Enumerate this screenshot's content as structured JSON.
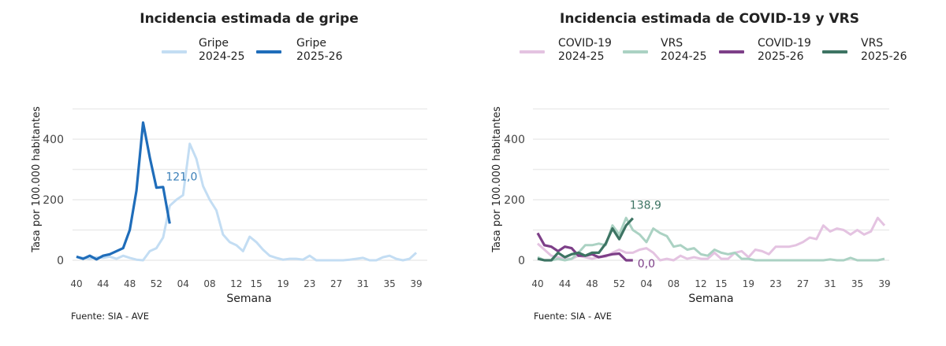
{
  "chart_data": [
    {
      "type": "line",
      "title": "Incidencia estimada de gripe",
      "xlabel": "Semana",
      "ylabel": "Tasa por 100.000 habitantes",
      "source": "Fuente: SIA - AVE",
      "ylim": [
        0,
        500
      ],
      "ytick_labels": [
        "0",
        "200",
        "400"
      ],
      "gridlines": [
        0,
        100,
        200,
        300,
        400,
        500
      ],
      "grid": true,
      "legend_position": "top",
      "weeks": [
        "40",
        "41",
        "42",
        "43",
        "44",
        "45",
        "46",
        "47",
        "48",
        "49",
        "50",
        "51",
        "52",
        "01",
        "02",
        "03",
        "04",
        "05",
        "06",
        "07",
        "08",
        "09",
        "10",
        "11",
        "12",
        "13",
        "14",
        "15",
        "16",
        "17",
        "18",
        "19",
        "20",
        "21",
        "22",
        "23",
        "24",
        "25",
        "26",
        "27",
        "28",
        "29",
        "30",
        "31",
        "32",
        "33",
        "34",
        "35",
        "36",
        "37",
        "38",
        "39"
      ],
      "xtick_labels": [
        "40",
        "44",
        "48",
        "52",
        "04",
        "08",
        "12",
        "15",
        "19",
        "23",
        "27",
        "31",
        "35",
        "39"
      ],
      "series": [
        {
          "name": "Gripe 2024-25",
          "legend": [
            "Gripe",
            "2024-25"
          ],
          "color": "#c3ddf3",
          "values": [
            10,
            8,
            5,
            10,
            8,
            12,
            5,
            15,
            8,
            2,
            0,
            30,
            40,
            75,
            180,
            200,
            215,
            385,
            335,
            245,
            200,
            165,
            85,
            60,
            50,
            30,
            78,
            60,
            35,
            15,
            8,
            2,
            5,
            5,
            2,
            15,
            0,
            0,
            0,
            0,
            0,
            2,
            5,
            8,
            0,
            0,
            10,
            15,
            5,
            0,
            5,
            25
          ]
        },
        {
          "name": "Gripe 2025-26",
          "legend": [
            "Gripe",
            "2025-26"
          ],
          "color": "#1f6dba",
          "values": [
            12,
            5,
            15,
            3,
            15,
            20,
            30,
            40,
            100,
            230,
            455,
            340,
            240,
            242,
            121.0
          ],
          "end_label": "121,0",
          "end_label_color": "#3a7fb8"
        }
      ]
    },
    {
      "type": "line",
      "title": "Incidencia estimada de COVID-19 y VRS",
      "xlabel": "Semana",
      "ylabel": "Tasa por 100.000 habitantes",
      "source": "Fuente: SIA - AVE",
      "ylim": [
        0,
        500
      ],
      "ytick_labels": [
        "0",
        "200",
        "400"
      ],
      "gridlines": [
        0,
        100,
        200,
        300,
        400,
        500
      ],
      "grid": true,
      "legend_position": "top",
      "xtick_labels": [
        "40",
        "44",
        "48",
        "52",
        "04",
        "08",
        "12",
        "15",
        "19",
        "23",
        "27",
        "31",
        "35",
        "39"
      ],
      "series": [
        {
          "name": "COVID-19 2024-25",
          "legend": [
            "COVID-19",
            "2024-25"
          ],
          "color": "#e4c3e1",
          "values": [
            55,
            35,
            15,
            10,
            5,
            5,
            15,
            10,
            5,
            10,
            12,
            25,
            35,
            25,
            25,
            35,
            40,
            25,
            0,
            5,
            0,
            15,
            5,
            10,
            5,
            5,
            25,
            5,
            5,
            25,
            30,
            10,
            35,
            30,
            20,
            45,
            45,
            45,
            50,
            60,
            75,
            70,
            115,
            95,
            105,
            100,
            85,
            100,
            85,
            95,
            140,
            115
          ]
        },
        {
          "name": "VRS 2024-25",
          "legend": [
            "VRS",
            "2024-25"
          ],
          "color": "#abd2c3",
          "values": [
            10,
            0,
            0,
            5,
            0,
            5,
            25,
            50,
            50,
            55,
            50,
            115,
            85,
            140,
            100,
            85,
            60,
            105,
            90,
            80,
            45,
            50,
            35,
            40,
            20,
            15,
            35,
            25,
            20,
            25,
            5,
            5,
            0,
            0,
            0,
            0,
            0,
            0,
            0,
            0,
            0,
            0,
            0,
            3,
            0,
            0,
            8,
            0,
            0,
            0,
            0,
            5
          ]
        },
        {
          "name": "COVID-19 2025-26",
          "legend": [
            "COVID-19",
            "2025-26"
          ],
          "color": "#7d3f88",
          "values": [
            90,
            50,
            45,
            30,
            45,
            40,
            15,
            15,
            20,
            10,
            15,
            20,
            22,
            0,
            0.0
          ],
          "end_label": "0,0",
          "end_label_color": "#7d3f88"
        },
        {
          "name": "VRS 2025-26",
          "legend": [
            "VRS",
            "2025-26"
          ],
          "color": "#3d7463",
          "values": [
            5,
            0,
            0,
            25,
            10,
            20,
            25,
            15,
            25,
            25,
            55,
            105,
            70,
            115,
            138.9
          ],
          "end_label": "138,9",
          "end_label_color": "#3d7463"
        }
      ]
    }
  ]
}
